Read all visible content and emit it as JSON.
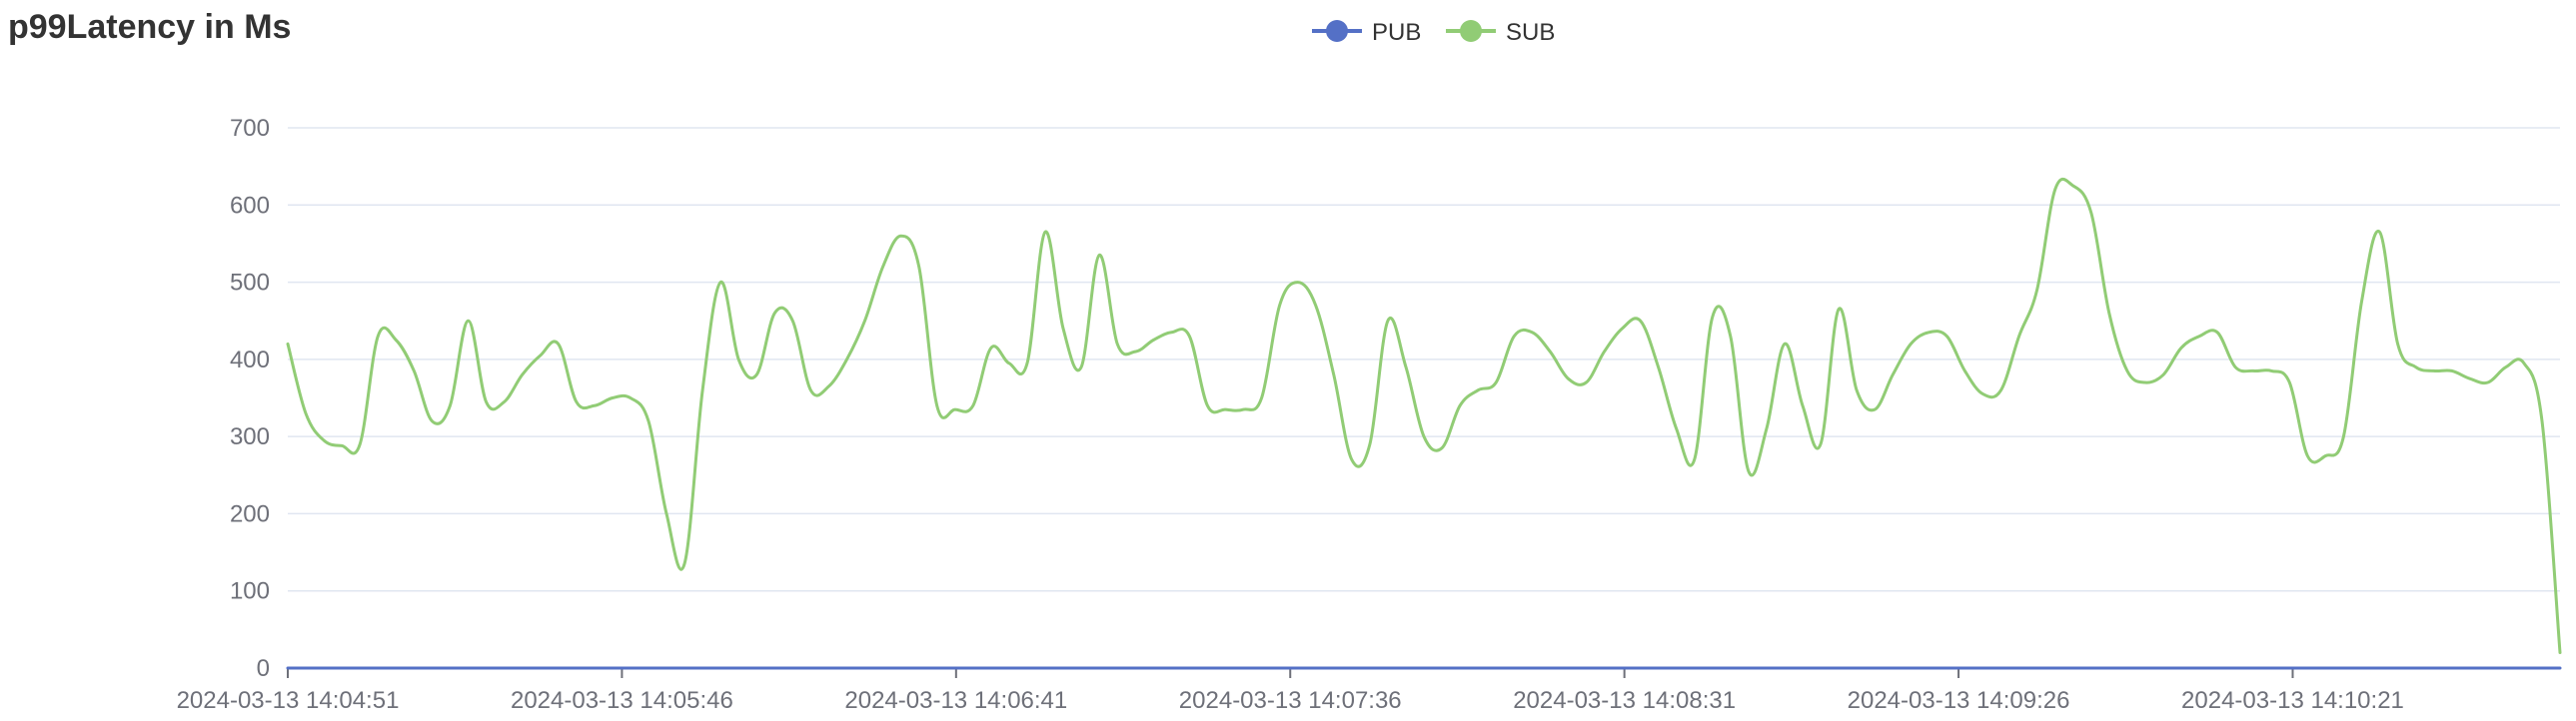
{
  "chart_data": {
    "type": "line",
    "title": "p99Latency in Ms",
    "ylim": [
      0,
      700
    ],
    "y_ticks": [
      "0",
      "100",
      "200",
      "300",
      "400",
      "500",
      "600",
      "700"
    ],
    "x_tick_labels": [
      "2024-03-13 14:04:51",
      "2024-03-13 14:05:46",
      "2024-03-13 14:06:41",
      "2024-03-13 14:07:36",
      "2024-03-13 14:08:31",
      "2024-03-13 14:09:26",
      "2024-03-13 14:10:21"
    ],
    "x_range": [
      "2024-03-13 14:04:51",
      "2024-03-13 14:11:05"
    ],
    "grid": true,
    "legend_position": "top-center",
    "series": [
      {
        "name": "PUB",
        "color": "#5470c6",
        "values": [
          0,
          0
        ]
      },
      {
        "name": "SUB",
        "color": "#91cc75",
        "values": [
          420,
          330,
          295,
          288,
          290,
          430,
          425,
          385,
          320,
          340,
          450,
          345,
          345,
          380,
          405,
          420,
          345,
          340,
          350,
          350,
          320,
          200,
          135,
          360,
          500,
          400,
          380,
          460,
          450,
          360,
          365,
          400,
          450,
          520,
          560,
          520,
          340,
          335,
          340,
          415,
          395,
          395,
          565,
          440,
          390,
          535,
          420,
          410,
          425,
          435,
          430,
          340,
          335,
          335,
          350,
          470,
          500,
          470,
          380,
          270,
          290,
          450,
          390,
          300,
          285,
          340,
          360,
          370,
          430,
          435,
          410,
          375,
          370,
          410,
          440,
          450,
          390,
          310,
          270,
          455,
          430,
          255,
          310,
          420,
          340,
          290,
          465,
          360,
          335,
          380,
          420,
          435,
          430,
          385,
          355,
          360,
          430,
          490,
          620,
          625,
          590,
          460,
          385,
          370,
          380,
          415,
          430,
          435,
          390,
          385,
          385,
          370,
          275,
          275,
          300,
          475,
          565,
          420,
          390,
          385,
          385,
          375,
          370,
          390,
          395,
          320,
          20
        ]
      }
    ]
  }
}
